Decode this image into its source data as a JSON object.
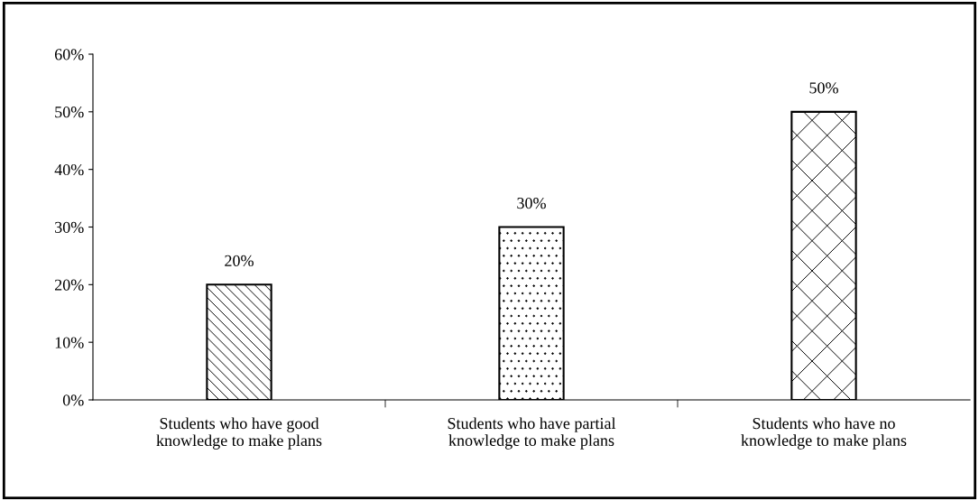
{
  "chart_data": {
    "type": "bar",
    "categories": [
      "Students who have good\nknowledge to make plans",
      "Students who have partial\nknowledge to make plans",
      "Students who have no\nknowledge to make plans"
    ],
    "values": [
      20,
      30,
      50
    ],
    "value_labels": [
      "20%",
      "30%",
      "50%"
    ],
    "colors": [
      "#000000",
      "#000000",
      "#000000"
    ],
    "ylim": [
      0,
      60
    ],
    "yticks": [
      {
        "value": 0,
        "label": "0%"
      },
      {
        "value": 10,
        "label": "10%"
      },
      {
        "value": 20,
        "label": "20%"
      },
      {
        "value": 30,
        "label": "30%"
      },
      {
        "value": 40,
        "label": "40%"
      },
      {
        "value": 50,
        "label": "50%"
      },
      {
        "value": 60,
        "label": "60%"
      }
    ],
    "grid": false,
    "legend": false
  }
}
